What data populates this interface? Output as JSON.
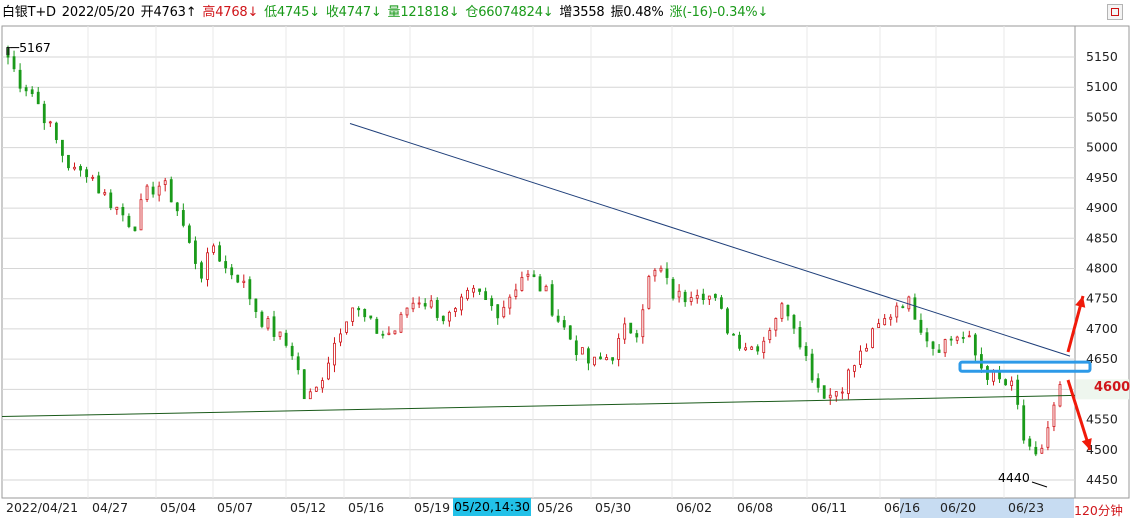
{
  "header": {
    "instrument": "白银T+D",
    "date": "2022/05/20",
    "open": "开4763↑",
    "high": "高4768↓",
    "low": "低4745↓",
    "close": "收4747↓",
    "volume": "量121818↓",
    "position": "仓66074824↓",
    "increase": "增3558",
    "amplitude": "振0.48%",
    "change": "涨(-16)-0.34%↓"
  },
  "colors": {
    "up": "#d0161b",
    "down": "#1a9a1a",
    "trend_upper": "#1f3f7a",
    "trend_lower": "#1a5a1a",
    "zone": "#2d9ae8",
    "arrow": "#f01a0a"
  },
  "markers": {
    "high": "5167",
    "low": "4440",
    "current": "4600"
  },
  "cursor_label": "05/20,14:30",
  "period_label": "120分钟",
  "chart_data": {
    "type": "candlestick",
    "ylim": [
      4430,
      5200
    ],
    "y_ticks": [
      4450,
      4500,
      4550,
      4600,
      4650,
      4700,
      4750,
      4800,
      4850,
      4900,
      4950,
      5000,
      5050,
      5100,
      5150
    ],
    "x_tick_labels": [
      "2022/04/21",
      "04/27",
      "05/04",
      "05/07",
      "05/12",
      "05/16",
      "05/19",
      "05/26",
      "05/30",
      "06/02",
      "06/08",
      "06/11",
      "06/16",
      "06/20",
      "06/23"
    ],
    "high_price": 5167,
    "low_price": 4440,
    "current_price": 4600,
    "trend_upper": {
      "from_price": 5040,
      "to_price": 4655
    },
    "trend_lower": {
      "from_price": 4555,
      "to_price": 4590
    },
    "zone": {
      "top": 4645,
      "bottom": 4630
    },
    "waypoints": [
      5150,
      5110,
      5095,
      5060,
      5020,
      4980,
      4955,
      4965,
      4930,
      4910,
      4890,
      4870,
      4920,
      4940,
      4930,
      4890,
      4830,
      4790,
      4840,
      4800,
      4790,
      4760,
      4720,
      4700,
      4680,
      4660,
      4580,
      4600,
      4650,
      4700,
      4740,
      4720,
      4700,
      4690,
      4700,
      4740,
      4750,
      4740,
      4720,
      4720,
      4750,
      4760,
      4740,
      4730,
      4760,
      4790,
      4780,
      4760,
      4720,
      4690,
      4660,
      4640,
      4650,
      4660,
      4700,
      4700,
      4780,
      4800,
      4760,
      4750,
      4770,
      4760,
      4740,
      4700,
      4680,
      4670,
      4680,
      4720,
      4740,
      4700,
      4640,
      4600,
      4590,
      4610,
      4640,
      4670,
      4700,
      4720,
      4750,
      4740,
      4700,
      4670,
      4680,
      4690,
      4680,
      4640,
      4620,
      4610,
      4600,
      4500,
      4480,
      4540,
      4600
    ]
  }
}
